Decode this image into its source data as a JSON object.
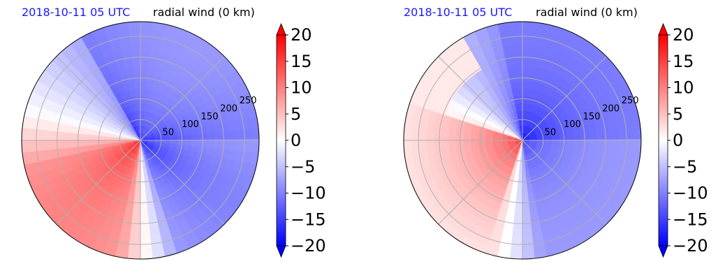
{
  "chart_data": [
    {
      "type": "heatmap",
      "projection": "polar",
      "date_label": "2018-10-11 05 UTC",
      "title": "radial wind (0 km)",
      "radial_ticks": [
        50,
        100,
        150,
        200,
        250
      ],
      "radial_max": 285,
      "angular_gridlines_deg": [
        0,
        45,
        90,
        135,
        180,
        225,
        270,
        315
      ],
      "grid": true,
      "colormap": "bwr",
      "colorbar": {
        "vmin": -20,
        "vmax": 20,
        "extend": "both",
        "ticks": [
          "20",
          "15",
          "10",
          "5",
          "0",
          "−5",
          "−10",
          "−15",
          "−20"
        ],
        "position": "right"
      },
      "field_description": "negative (blue) to the north and east, positive (red) to the southwest"
    },
    {
      "type": "heatmap",
      "projection": "polar",
      "date_label": "2018-10-11 05 UTC",
      "title": "radial wind (0 km)",
      "radial_ticks": [
        50,
        100,
        150,
        200,
        250
      ],
      "radial_max": 285,
      "angular_gridlines_deg": [
        0,
        45,
        90,
        135,
        180,
        225,
        270,
        315
      ],
      "grid": true,
      "colormap": "bwr",
      "colorbar": {
        "vmin": -20,
        "vmax": 20,
        "extend": "both",
        "ticks": [
          "20",
          "15",
          "10",
          "5",
          "0",
          "−5",
          "−10",
          "−15",
          "−20"
        ],
        "position": "right"
      },
      "field_description": "negative (blue) to the north, east and south, positive (red) to the west"
    }
  ],
  "colors": {
    "date_text": "#1a1aff",
    "grid": "#b0b0b0",
    "blue": "#0000ff",
    "red": "#ff0000"
  }
}
